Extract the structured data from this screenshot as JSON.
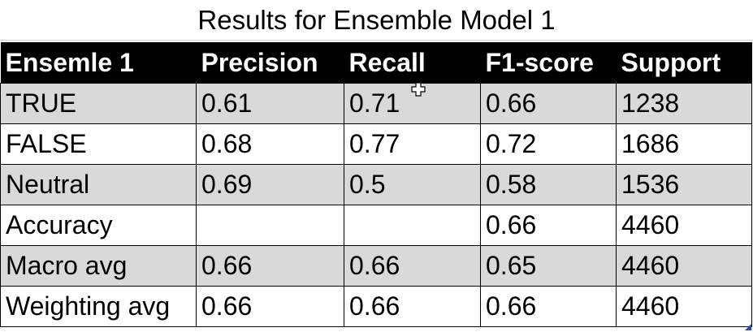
{
  "title": "Results for Ensemble Model 1",
  "table": {
    "headers": [
      "Ensemle 1",
      "Precision",
      "Recall",
      "F1-score",
      "Support"
    ],
    "rows": [
      {
        "label": "TRUE",
        "precision": "0.61",
        "recall": "0.71",
        "f1": "0.66",
        "support": "1238",
        "shaded": true
      },
      {
        "label": "FALSE",
        "precision": "0.68",
        "recall": "0.77",
        "f1": "0.72",
        "support": "1686",
        "shaded": false
      },
      {
        "label": "Neutral",
        "precision": "0.69",
        "recall": "0.5",
        "f1": "0.58",
        "support": "1536",
        "shaded": true
      },
      {
        "label": "Accuracy",
        "precision": "",
        "recall": "",
        "f1": "0.66",
        "support": "4460",
        "shaded": false
      },
      {
        "label": "Macro avg",
        "precision": "0.66",
        "recall": "0.66",
        "f1": "0.65",
        "support": "4460",
        "shaded": true
      },
      {
        "label": "Weighting avg",
        "precision": "0.66",
        "recall": "0.66",
        "f1": "0.66",
        "support": "4460",
        "shaded": false
      }
    ]
  },
  "colors": {
    "header_bg": "#000000",
    "header_text": "#ffffff",
    "row_shade": "#d9d9d9",
    "row_plain": "#ffffff"
  },
  "icons": {
    "cursor": "cell-select-cross-cursor-icon",
    "resize": "resize-handle-icon"
  }
}
